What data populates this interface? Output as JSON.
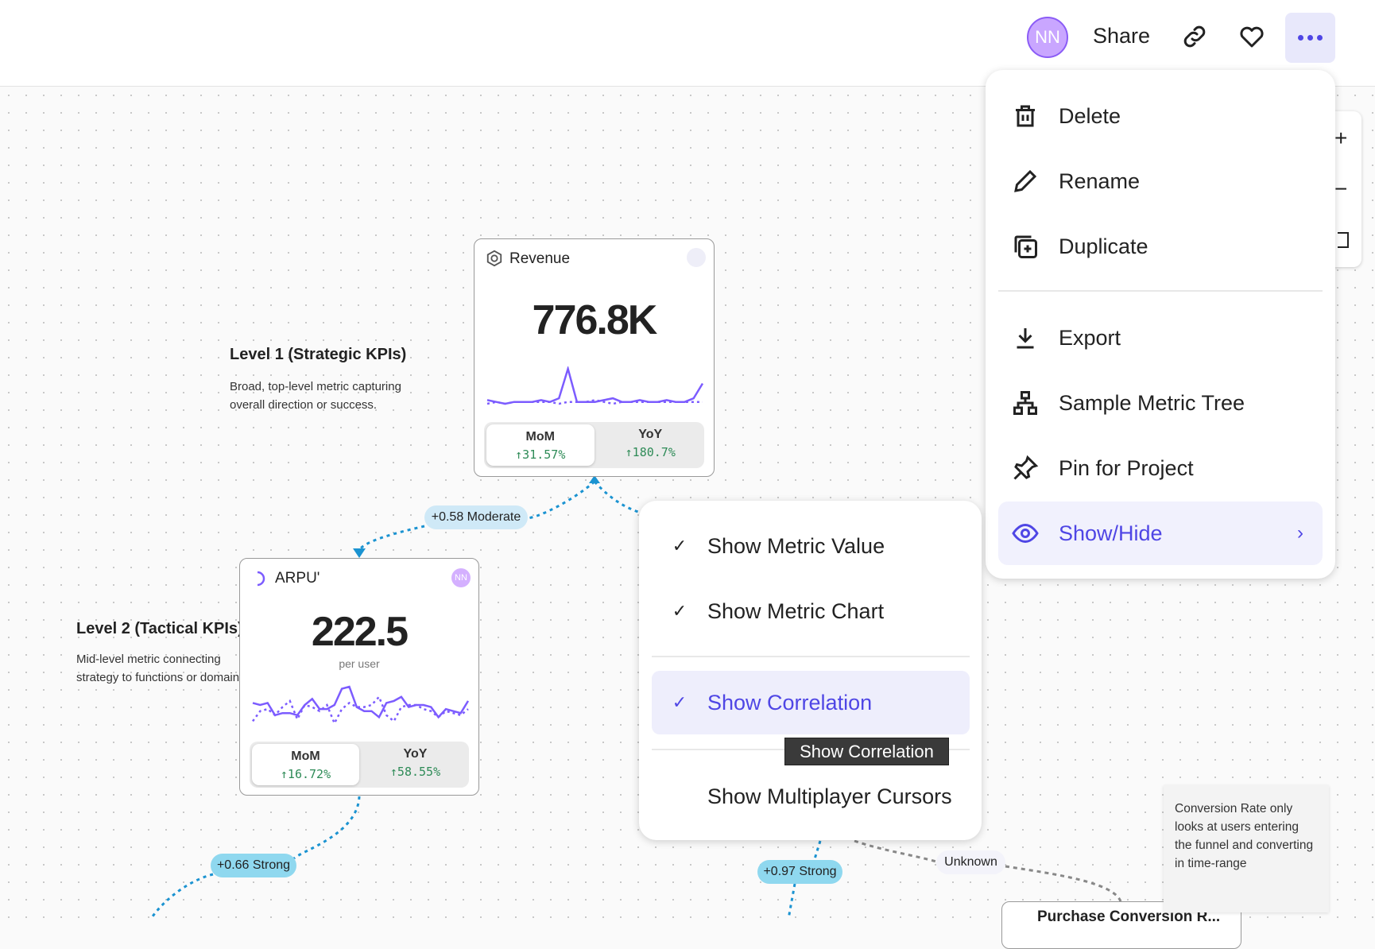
{
  "header": {
    "avatar_initials": "NN",
    "share_label": "Share",
    "link_icon": "link-icon",
    "favorite_icon": "heart-icon",
    "more_icon": "more-horizontal-icon"
  },
  "menu": {
    "items": [
      {
        "label": "Delete",
        "icon": "trash-icon"
      },
      {
        "label": "Rename",
        "icon": "pencil-icon"
      },
      {
        "label": "Duplicate",
        "icon": "duplicate-icon"
      },
      {
        "label": "Export",
        "icon": "download-icon"
      },
      {
        "label": "Sample Metric Tree",
        "icon": "hierarchy-icon"
      },
      {
        "label": "Pin for Project",
        "icon": "pin-icon"
      },
      {
        "label": "Show/Hide",
        "icon": "eye-icon",
        "active": true
      }
    ]
  },
  "submenu": {
    "items": [
      {
        "label": "Show Metric Value",
        "checked": true
      },
      {
        "label": "Show Metric Chart",
        "checked": true
      },
      {
        "label": "Show Correlation",
        "checked": true,
        "active": true
      },
      {
        "label": "Show Multiplayer Cursors",
        "checked": false
      }
    ],
    "tooltip": "Show Correlation"
  },
  "levels": [
    {
      "title": "Level 1 (Strategic KPIs)",
      "desc_line1": "Broad, top-level metric capturing",
      "desc_line2": "overall direction or success."
    },
    {
      "title": "Level 2 (Tactical KPIs)",
      "desc_line1": "Mid-level metric connecting",
      "desc_line2": "strategy to functions or domains."
    }
  ],
  "cards": {
    "revenue": {
      "title": "Revenue",
      "value": "776.8K",
      "mom_label": "MoM",
      "mom": "31.57%",
      "yoy_label": "YoY",
      "yoy": "180.7%",
      "sparkline": [
        5,
        4,
        3,
        4,
        4,
        4,
        5,
        4,
        6,
        22,
        4,
        4,
        4,
        5,
        6,
        4,
        4,
        5,
        4,
        4,
        5,
        4,
        4,
        6,
        14
      ],
      "sparkline_prev": [
        3,
        4,
        3,
        4,
        4,
        4,
        4,
        4,
        3,
        4,
        4,
        4,
        5,
        4,
        3,
        4,
        4,
        4,
        4,
        4,
        4,
        4,
        4,
        4,
        4
      ]
    },
    "arpu": {
      "title": "ARPU'",
      "value": "222.5",
      "unit": "per user",
      "avatar": "NN",
      "mom_label": "MoM",
      "mom": "16.72%",
      "yoy_label": "YoY",
      "yoy": "58.55%",
      "sparkline": [
        12,
        11,
        12,
        6,
        7,
        7,
        6,
        11,
        14,
        9,
        9,
        11,
        19,
        20,
        10,
        8,
        8,
        5,
        12,
        13,
        15,
        10,
        11,
        11,
        10,
        5,
        9,
        8,
        7,
        13
      ],
      "sparkline_prev": [
        3,
        8,
        9,
        6,
        10,
        13,
        4,
        11,
        10,
        8,
        11,
        2,
        9,
        12,
        10,
        10,
        11,
        15,
        6,
        3,
        10,
        11,
        11,
        9,
        8,
        5,
        8,
        7,
        6,
        9
      ]
    },
    "purchase": {
      "title": "Purchase Conversion R..."
    }
  },
  "correlations": [
    {
      "label": "+0.58 Moderate",
      "strength": "moderate"
    },
    {
      "label": "+0.66 Strong",
      "strength": "strong"
    },
    {
      "label": "+0.97 Strong",
      "strength": "strong"
    },
    {
      "label": "Unknown",
      "strength": "unknown"
    }
  ],
  "note": {
    "text": "Conversion Rate only looks at users entering the funnel and converting in time-range"
  },
  "colors": {
    "accent": "#4f46e5",
    "chart": "#7c5cff",
    "positive": "#2e8b57",
    "link_moderate": "#cfe9f7",
    "link_strong": "#8fd8ef",
    "edge": "#1b93d1"
  }
}
